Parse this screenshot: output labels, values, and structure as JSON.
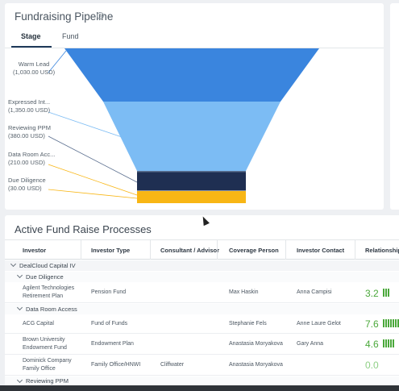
{
  "pipeline": {
    "title": "Fundraising Pipeline",
    "tabs": [
      "Stage",
      "Fund"
    ],
    "funnel": [
      {
        "stage": "Warm Lead",
        "value": "(1,030.00 USD)",
        "color": "#3a85de"
      },
      {
        "stage": "Expressed Int...",
        "value": "(1,350.00 USD)",
        "color": "#7cbcf4"
      },
      {
        "stage": "Reviewing PPM",
        "value": "(380.00 USD)",
        "color": "#5b6f8f"
      },
      {
        "stage": "Data Room Acc...",
        "value": "(210.00 USD)",
        "color": "#1f2f52"
      },
      {
        "stage": "Due Diligence",
        "value": "(30.00 USD)",
        "color": "#f8b615"
      }
    ],
    "leader_colors": [
      "#3a85de",
      "#7cbcf4",
      "#5b6f8f",
      "#f8b615",
      "#f8b615"
    ]
  },
  "table": {
    "title": "Active Fund Raise Processes",
    "columns": [
      "Investor",
      "Investor Type",
      "Consultant / Advisor",
      "Coverage Person",
      "Investor Contact",
      "Relationship"
    ],
    "fund_group": "DealCloud Capital IV",
    "groups": [
      {
        "stage": "Due Diligence",
        "rows": [
          {
            "investor": "Agilent Technologies Retirement Plan",
            "type": "Pension Fund",
            "advisor": "",
            "coverage": "Max Haskin",
            "contact": "Anna Campisi",
            "score": "3.2",
            "bars": 3
          }
        ]
      },
      {
        "stage": "Data Room Access",
        "rows": [
          {
            "investor": "ACG Capital",
            "type": "Fund of Funds",
            "advisor": "",
            "coverage": "Stephanie Fels",
            "contact": "Anne Laure Gelot",
            "score": "7.6",
            "bars": 7
          },
          {
            "investor": "Brown University Endowment Fund",
            "type": "Endowment Plan",
            "advisor": "",
            "coverage": "Anastasia Moryakova",
            "contact": "Gary Anna",
            "score": "4.6",
            "bars": 5
          },
          {
            "investor": "Dominick Company Family Office",
            "type": "Family Office/HNWI",
            "advisor": "Cliffwater",
            "coverage": "Anastasia Moryakova",
            "contact": "",
            "score": "0.0",
            "bars": 0
          }
        ]
      },
      {
        "stage": "Reviewing PPM",
        "rows": []
      }
    ]
  }
}
